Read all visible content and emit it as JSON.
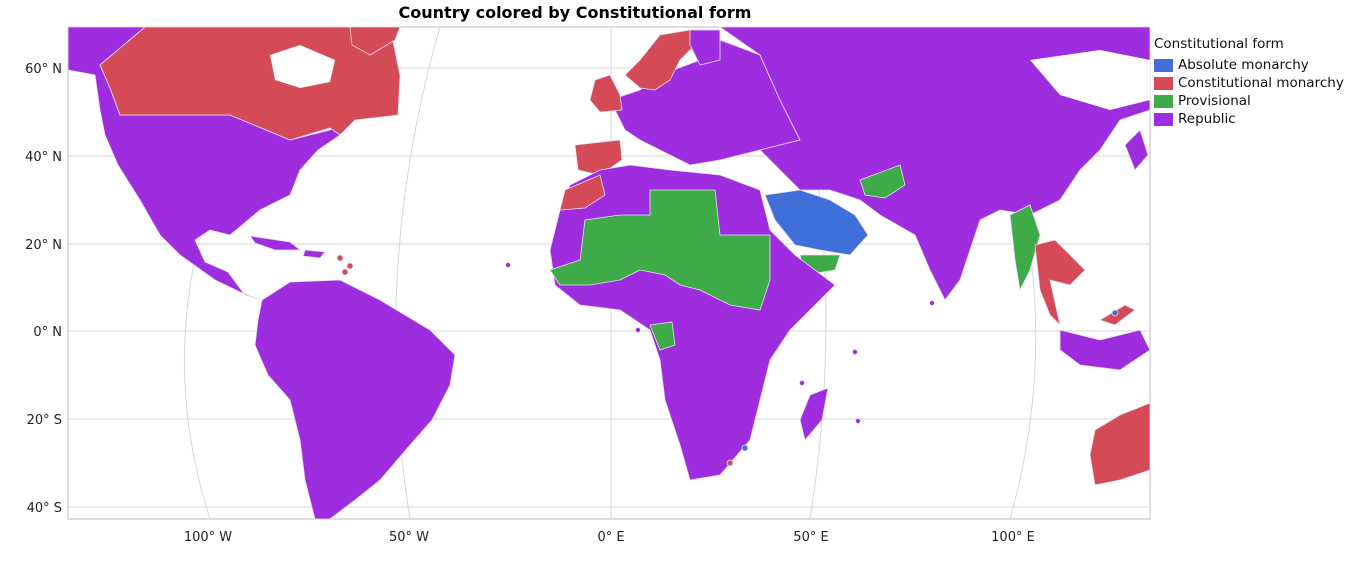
{
  "title": "Country colored by Constitutional form",
  "legend": {
    "title": "Constitutional form",
    "items": [
      {
        "label": "Absolute monarchy",
        "color": "#3f6fd8"
      },
      {
        "label": "Constitutional monarchy",
        "color": "#d44a56"
      },
      {
        "label": "Provisional",
        "color": "#3eab48"
      },
      {
        "label": "Republic",
        "color": "#9e2ddf"
      }
    ]
  },
  "axes": {
    "lat_ticks": [
      "60° N",
      "40° N",
      "20° N",
      "0° N",
      "20° S",
      "40° S"
    ],
    "lon_ticks": [
      "100° W",
      "50° W",
      "0° E",
      "50° E",
      "100° E"
    ]
  },
  "colors": {
    "land": "#9e2ddf",
    "ocean": "#ffffff",
    "grid": "#d8d8d8",
    "border": "#bdbdbd",
    "country_border": "#e9dff2"
  }
}
